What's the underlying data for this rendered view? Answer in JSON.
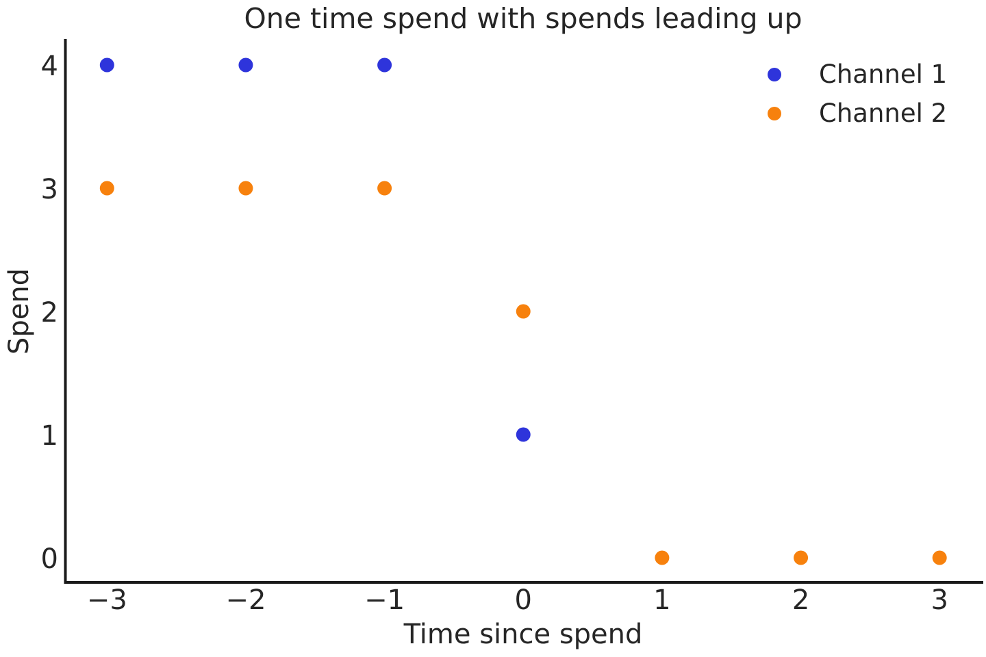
{
  "chart_data": {
    "type": "scatter",
    "title": "One time spend with spends leading up",
    "xlabel": "Time since spend",
    "ylabel": "Spend",
    "xlim": [
      -3.3,
      3.3
    ],
    "ylim": [
      -0.2,
      4.2
    ],
    "xticks": [
      -3,
      -2,
      -1,
      0,
      1,
      2,
      3
    ],
    "yticks": [
      0,
      1,
      2,
      3,
      4
    ],
    "grid": false,
    "legend": {
      "position": "upper right"
    },
    "series": [
      {
        "name": "Channel 1",
        "color": "#2e34db",
        "points": [
          [
            -3,
            4
          ],
          [
            -2,
            4
          ],
          [
            -1,
            4
          ],
          [
            0,
            1
          ]
        ]
      },
      {
        "name": "Channel 2",
        "color": "#f7810d",
        "points": [
          [
            -3,
            3
          ],
          [
            -2,
            3
          ],
          [
            -1,
            3
          ],
          [
            0,
            2
          ],
          [
            1,
            0
          ],
          [
            2,
            0
          ],
          [
            3,
            0
          ]
        ]
      }
    ],
    "colors": {
      "text": "#262626",
      "spine": "#1a1a1a",
      "background": "#ffffff"
    }
  }
}
